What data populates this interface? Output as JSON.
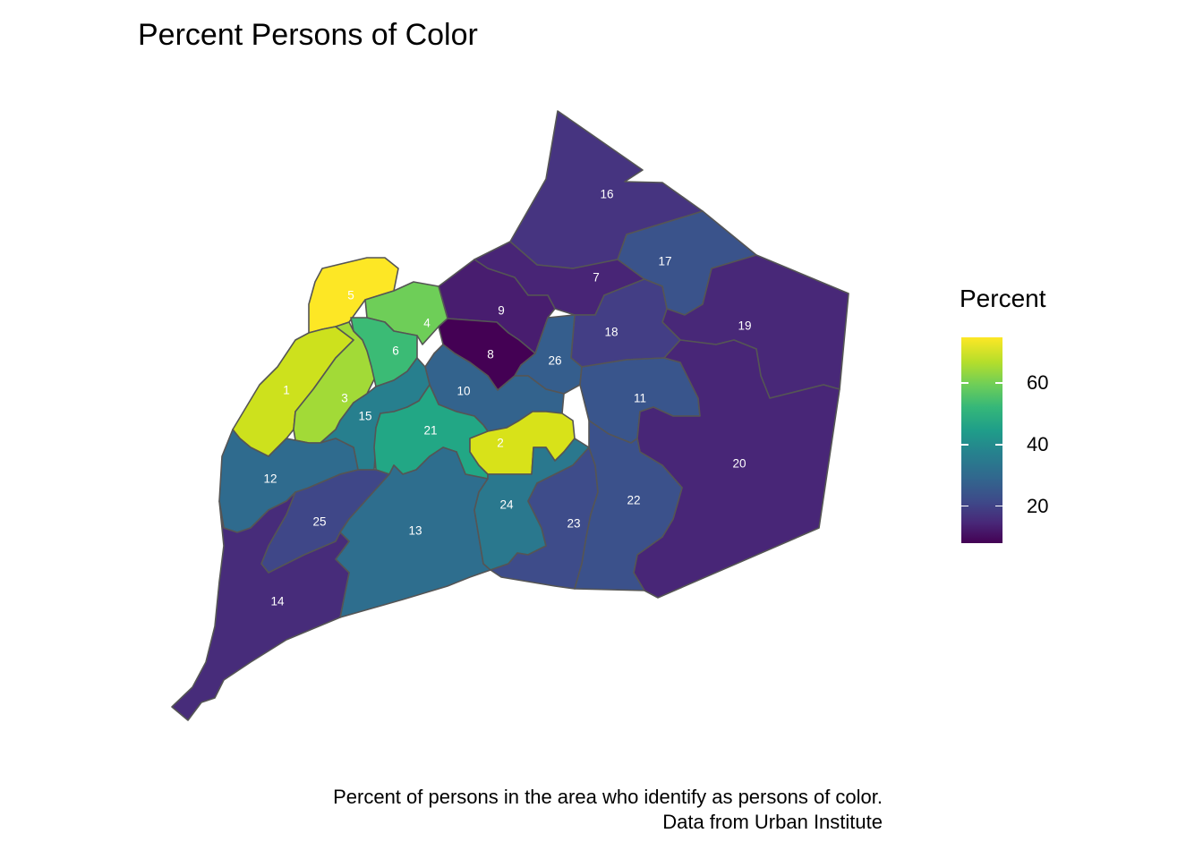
{
  "title": "Percent Persons of Color",
  "caption_line1": "Percent of persons in the area who identify as persons of color.",
  "caption_line2": "Data from Urban Institute",
  "legend": {
    "title": "Percent",
    "ticks": [
      "60",
      "40",
      "20"
    ],
    "tick_values": [
      60,
      40,
      20
    ],
    "range": [
      8,
      75
    ],
    "palette": "viridis"
  },
  "colors": {
    "outline": "#555555",
    "label_text": "#ffffff"
  },
  "districts": [
    {
      "id": "1",
      "label": "1",
      "color": "#cde11d"
    },
    {
      "id": "2",
      "label": "2",
      "color": "#d8e219"
    },
    {
      "id": "3",
      "label": "3",
      "color": "#a2da37"
    },
    {
      "id": "4",
      "label": "4",
      "color": "#6ece58"
    },
    {
      "id": "5",
      "label": "5",
      "color": "#fde725"
    },
    {
      "id": "6",
      "label": "6",
      "color": "#3bbb75"
    },
    {
      "id": "7",
      "label": "7",
      "color": "#482576"
    },
    {
      "id": "8",
      "label": "8",
      "color": "#440154"
    },
    {
      "id": "9",
      "label": "9",
      "color": "#481d6f"
    },
    {
      "id": "10",
      "label": "10",
      "color": "#33638d"
    },
    {
      "id": "11",
      "label": "11",
      "color": "#39558c"
    },
    {
      "id": "12",
      "label": "12",
      "color": "#2f6b8e"
    },
    {
      "id": "13",
      "label": "13",
      "color": "#2e6e8e"
    },
    {
      "id": "14",
      "label": "14",
      "color": "#472c7a"
    },
    {
      "id": "15",
      "label": "15",
      "color": "#277f8e"
    },
    {
      "id": "16",
      "label": "16",
      "color": "#463480"
    },
    {
      "id": "17",
      "label": "17",
      "color": "#3a538b"
    },
    {
      "id": "18",
      "label": "18",
      "color": "#433e85"
    },
    {
      "id": "19",
      "label": "19",
      "color": "#482878"
    },
    {
      "id": "20",
      "label": "20",
      "color": "#482677"
    },
    {
      "id": "21",
      "label": "21",
      "color": "#22a785"
    },
    {
      "id": "22",
      "label": "22",
      "color": "#3b518b"
    },
    {
      "id": "23",
      "label": "23",
      "color": "#3e4c8a"
    },
    {
      "id": "24",
      "label": "24",
      "color": "#2a788e"
    },
    {
      "id": "25",
      "label": "25",
      "color": "#3f4788"
    },
    {
      "id": "26",
      "label": "26",
      "color": "#355e8d"
    }
  ]
}
